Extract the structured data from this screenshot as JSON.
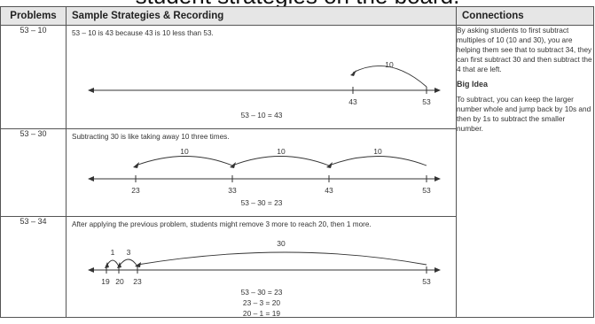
{
  "page_caption": "student strategies on the board.",
  "headers": {
    "problems": "Problems",
    "strategies": "Sample Strategies & Recording",
    "connections": "Connections"
  },
  "rows": [
    {
      "problem": "53 – 10",
      "note": "53 – 10 is 43 because 43 is 10 less than 53.",
      "jump_labels": [
        "10"
      ],
      "tick_labels": [
        "43",
        "53"
      ],
      "equations": [
        "53 – 10 = 43"
      ]
    },
    {
      "problem": "53 – 30",
      "note": "Subtracting 30 is like taking away 10 three times.",
      "jump_labels": [
        "10",
        "10",
        "10"
      ],
      "tick_labels": [
        "23",
        "33",
        "43",
        "53"
      ],
      "equations": [
        "53 – 30 = 23"
      ]
    },
    {
      "problem": "53 – 34",
      "note": "After applying the previous problem, students might remove 3 more to reach 20, then 1 more.",
      "jump_labels": [
        "1",
        "3",
        "30"
      ],
      "tick_labels": [
        "19",
        "20",
        "23",
        "53"
      ],
      "equations": [
        "53 – 30 = 23",
        "23 – 3 = 20",
        "20 – 1 = 19"
      ]
    }
  ],
  "connections": {
    "paragraph": "By asking students to first subtract multiples of 10 (10 and 30), you are helping them see that to subtract 34, they can first subtract 30 and then subtract the 4 that are left.",
    "big_idea_title": "Big Idea",
    "big_idea_text": "To subtract, you can keep the larger number whole and jump back by 10s and then by 1s to subtract the smaller number."
  }
}
